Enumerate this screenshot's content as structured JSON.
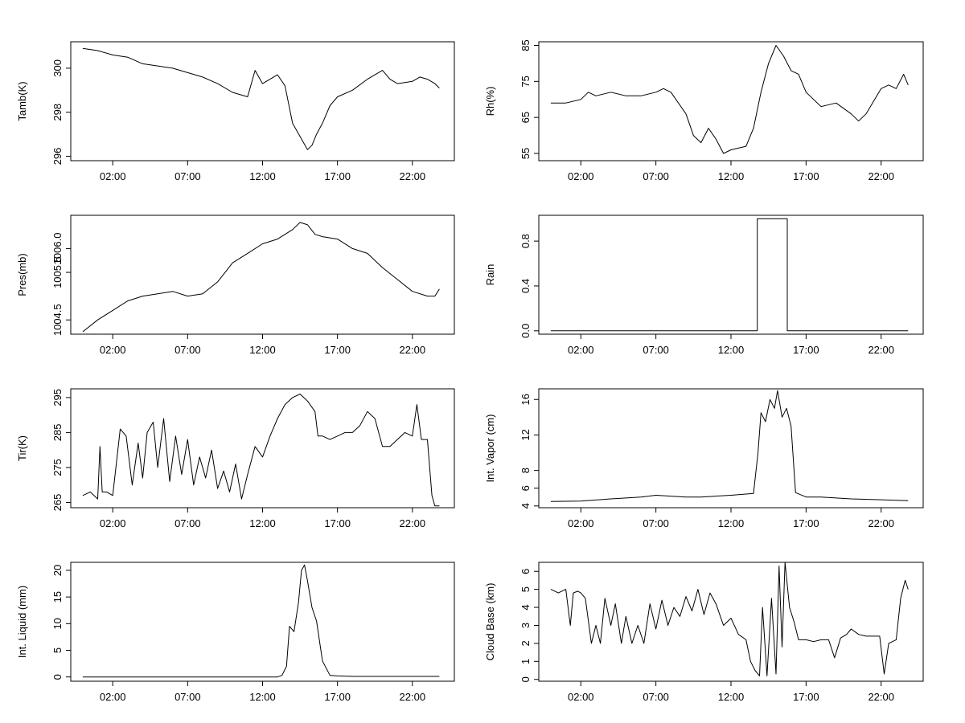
{
  "chart_data": [
    {
      "type": "line",
      "ylabel": "Tamb(K)",
      "xlabel": "",
      "x_ticks": [
        "02:00",
        "07:00",
        "12:00",
        "17:00",
        "22:00"
      ],
      "y_ticks": [
        "296",
        "298",
        "300"
      ],
      "ylim": [
        295.8,
        301.2
      ],
      "grid": false,
      "series": [
        {
          "x": [
            0.0,
            1.0,
            2.0,
            3.0,
            4.0,
            5.0,
            6.0,
            7.0,
            8.0,
            9.0,
            10.0,
            11.0,
            11.5,
            12.0,
            13.0,
            13.5,
            14.0,
            14.5,
            15.0,
            15.3,
            15.6,
            16.0,
            16.5,
            17.0,
            18.0,
            19.0,
            20.0,
            20.5,
            21.0,
            22.0,
            22.5,
            23.0,
            23.5,
            23.8
          ],
          "y": [
            300.9,
            300.8,
            300.6,
            300.5,
            300.2,
            300.1,
            300.0,
            299.8,
            299.6,
            299.3,
            298.9,
            298.7,
            299.9,
            299.3,
            299.7,
            299.2,
            297.5,
            296.9,
            296.3,
            296.5,
            297.0,
            297.5,
            298.3,
            298.7,
            299.0,
            299.5,
            299.9,
            299.5,
            299.3,
            299.4,
            299.6,
            299.5,
            299.3,
            299.1
          ]
        }
      ]
    },
    {
      "type": "line",
      "ylabel": "Rh(%)",
      "xlabel": "",
      "x_ticks": [
        "02:00",
        "07:00",
        "12:00",
        "17:00",
        "22:00"
      ],
      "y_ticks": [
        "55",
        "65",
        "75",
        "85"
      ],
      "ylim": [
        53,
        86
      ],
      "grid": false,
      "series": [
        {
          "x": [
            0.0,
            1.0,
            2.0,
            2.5,
            3.0,
            4.0,
            5.0,
            6.0,
            7.0,
            7.5,
            8.0,
            9.0,
            9.5,
            10.0,
            10.5,
            11.0,
            11.5,
            12.0,
            13.0,
            13.5,
            14.0,
            14.5,
            15.0,
            15.5,
            16.0,
            16.5,
            17.0,
            18.0,
            19.0,
            20.0,
            20.5,
            21.0,
            22.0,
            22.5,
            23.0,
            23.5,
            23.8
          ],
          "y": [
            69,
            69,
            70,
            72,
            71,
            72,
            71,
            71,
            72,
            73,
            72,
            66,
            60,
            58,
            62,
            59,
            55,
            56,
            57,
            62,
            72,
            80,
            85,
            82,
            78,
            77,
            72,
            68,
            69,
            66,
            64,
            66,
            73,
            74,
            73,
            77,
            74
          ]
        }
      ]
    },
    {
      "type": "line",
      "ylabel": "Pres(mb)",
      "xlabel": "",
      "x_ticks": [
        "02:00",
        "07:00",
        "12:00",
        "17:00",
        "22:00"
      ],
      "y_ticks": [
        "1004.5",
        "1005.5",
        "1006.0"
      ],
      "ylim": [
        1004.2,
        1006.7
      ],
      "grid": false,
      "series": [
        {
          "x": [
            0.0,
            1.0,
            2.0,
            3.0,
            4.0,
            5.0,
            6.0,
            7.0,
            8.0,
            9.0,
            10.0,
            11.0,
            12.0,
            13.0,
            14.0,
            14.5,
            15.0,
            15.5,
            16.0,
            17.0,
            18.0,
            19.0,
            20.0,
            21.0,
            22.0,
            23.0,
            23.5,
            23.8
          ],
          "y": [
            1004.25,
            1004.5,
            1004.7,
            1004.9,
            1005.0,
            1005.05,
            1005.1,
            1005.0,
            1005.05,
            1005.3,
            1005.7,
            1005.9,
            1006.1,
            1006.2,
            1006.4,
            1006.55,
            1006.5,
            1006.3,
            1006.25,
            1006.2,
            1006.0,
            1005.9,
            1005.6,
            1005.35,
            1005.1,
            1005.0,
            1005.0,
            1005.15
          ]
        }
      ]
    },
    {
      "type": "line",
      "ylabel": "Rain",
      "xlabel": "",
      "x_ticks": [
        "02:00",
        "07:00",
        "12:00",
        "17:00",
        "22:00"
      ],
      "y_ticks": [
        "0.0",
        "0.4",
        "0.8"
      ],
      "ylim": [
        -0.03,
        1.03
      ],
      "grid": false,
      "series": [
        {
          "x": [
            0.0,
            13.75,
            13.75,
            15.75,
            15.75,
            23.8
          ],
          "y": [
            0,
            0,
            1,
            1,
            0,
            0
          ]
        }
      ]
    },
    {
      "type": "line",
      "ylabel": "Tir(K)",
      "xlabel": "",
      "x_ticks": [
        "02:00",
        "07:00",
        "12:00",
        "17:00",
        "22:00"
      ],
      "y_ticks": [
        "265",
        "275",
        "285",
        "295"
      ],
      "ylim": [
        263.5,
        297.5
      ],
      "grid": false,
      "series": [
        {
          "x": [
            0.0,
            0.5,
            1.0,
            1.15,
            1.3,
            1.6,
            2.0,
            2.5,
            2.9,
            3.3,
            3.7,
            4.0,
            4.3,
            4.7,
            5.0,
            5.4,
            5.8,
            6.2,
            6.6,
            7.0,
            7.4,
            7.8,
            8.2,
            8.6,
            9.0,
            9.4,
            9.8,
            10.2,
            10.6,
            11.0,
            11.5,
            12.0,
            12.5,
            13.0,
            13.5,
            14.0,
            14.5,
            15.0,
            15.5,
            15.7,
            16.0,
            16.5,
            17.0,
            17.5,
            18.0,
            18.5,
            19.0,
            19.5,
            20.0,
            20.5,
            21.0,
            21.5,
            22.0,
            22.3,
            22.6,
            23.0,
            23.3,
            23.5,
            23.8
          ],
          "y": [
            267,
            268,
            266,
            281,
            268,
            268,
            267,
            286,
            284,
            270,
            282,
            272,
            285,
            288,
            275,
            289,
            271,
            284,
            273,
            283,
            270,
            278,
            272,
            280,
            269,
            274,
            268,
            276,
            266,
            273,
            281,
            278,
            284,
            289,
            293,
            295,
            296,
            294,
            291,
            284,
            284,
            283,
            284,
            285,
            285,
            287,
            291,
            289,
            281,
            281,
            283,
            285,
            284,
            293,
            283,
            283,
            267,
            264,
            264
          ]
        }
      ]
    },
    {
      "type": "line",
      "ylabel": "Int. Vapor (cm)",
      "xlabel": "",
      "x_ticks": [
        "02:00",
        "07:00",
        "12:00",
        "17:00",
        "22:00"
      ],
      "y_ticks": [
        "4",
        "6",
        "8",
        "12",
        "16"
      ],
      "ylim": [
        3.8,
        17.2
      ],
      "grid": false,
      "series": [
        {
          "x": [
            0.0,
            2.0,
            4.0,
            5.0,
            6.0,
            7.0,
            8.0,
            9.0,
            10.0,
            12.0,
            13.5,
            13.8,
            14.0,
            14.3,
            14.6,
            14.9,
            15.1,
            15.4,
            15.7,
            16.0,
            16.3,
            17.0,
            18.0,
            20.0,
            22.0,
            23.8
          ],
          "y": [
            4.5,
            4.55,
            4.8,
            4.9,
            5.0,
            5.2,
            5.1,
            5.0,
            5.0,
            5.2,
            5.4,
            10.0,
            14.5,
            13.5,
            16.0,
            15.0,
            17.0,
            14.0,
            15.0,
            13.0,
            5.5,
            5.0,
            5.0,
            4.8,
            4.7,
            4.6
          ]
        }
      ]
    },
    {
      "type": "line",
      "ylabel": "Int. Liquid (mm)",
      "xlabel": "",
      "x_ticks": [
        "02:00",
        "07:00",
        "12:00",
        "17:00",
        "22:00"
      ],
      "y_ticks": [
        "0",
        "5",
        "10",
        "15",
        "20"
      ],
      "ylim": [
        -0.8,
        21.5
      ],
      "grid": false,
      "series": [
        {
          "x": [
            0.0,
            12.0,
            13.0,
            13.3,
            13.6,
            13.8,
            14.1,
            14.4,
            14.6,
            14.8,
            15.0,
            15.3,
            15.6,
            16.0,
            16.5,
            17.0,
            18.0,
            20.0,
            22.0,
            23.8
          ],
          "y": [
            0,
            0,
            0,
            0.3,
            2.0,
            9.5,
            8.5,
            14.0,
            20.0,
            21.0,
            18.0,
            13.0,
            10.5,
            3.0,
            0.3,
            0.2,
            0.1,
            0.1,
            0.1,
            0.1
          ]
        }
      ]
    },
    {
      "type": "line",
      "ylabel": "Cloud Base (km)",
      "xlabel": "",
      "x_ticks": [
        "02:00",
        "07:00",
        "12:00",
        "17:00",
        "22:00"
      ],
      "y_ticks": [
        "0",
        "1",
        "2",
        "3",
        "4",
        "5",
        "6"
      ],
      "ylim": [
        -0.1,
        6.5
      ],
      "grid": false,
      "series": [
        {
          "x": [
            0.0,
            0.5,
            1.0,
            1.3,
            1.5,
            1.8,
            2.0,
            2.3,
            2.7,
            3.0,
            3.3,
            3.6,
            4.0,
            4.3,
            4.7,
            5.0,
            5.4,
            5.8,
            6.2,
            6.6,
            7.0,
            7.4,
            7.8,
            8.2,
            8.6,
            9.0,
            9.4,
            9.8,
            10.2,
            10.6,
            11.0,
            11.5,
            12.0,
            12.5,
            13.0,
            13.3,
            13.6,
            13.9,
            14.1,
            14.4,
            14.7,
            15.0,
            15.2,
            15.4,
            15.6,
            15.9,
            16.2,
            16.5,
            17.0,
            17.5,
            18.0,
            18.5,
            18.9,
            19.3,
            19.7,
            20.0,
            20.5,
            21.0,
            21.5,
            21.9,
            22.2,
            22.5,
            23.0,
            23.3,
            23.6,
            23.8
          ],
          "y": [
            5.0,
            4.8,
            5.0,
            3.0,
            4.8,
            4.9,
            4.8,
            4.5,
            2.0,
            3.0,
            2.0,
            4.5,
            3.0,
            4.2,
            2.0,
            3.5,
            2.0,
            3.0,
            2.0,
            4.2,
            2.8,
            4.4,
            3.0,
            4.0,
            3.5,
            4.6,
            3.8,
            5.0,
            3.6,
            4.8,
            4.2,
            3.0,
            3.4,
            2.5,
            2.2,
            1.0,
            0.5,
            0.2,
            4.0,
            0.2,
            4.5,
            0.3,
            6.3,
            1.8,
            6.5,
            4.0,
            3.2,
            2.2,
            2.2,
            2.1,
            2.2,
            2.2,
            1.2,
            2.3,
            2.5,
            2.8,
            2.5,
            2.4,
            2.4,
            2.4,
            0.3,
            2.0,
            2.2,
            4.5,
            5.5,
            5.0
          ]
        }
      ]
    }
  ]
}
